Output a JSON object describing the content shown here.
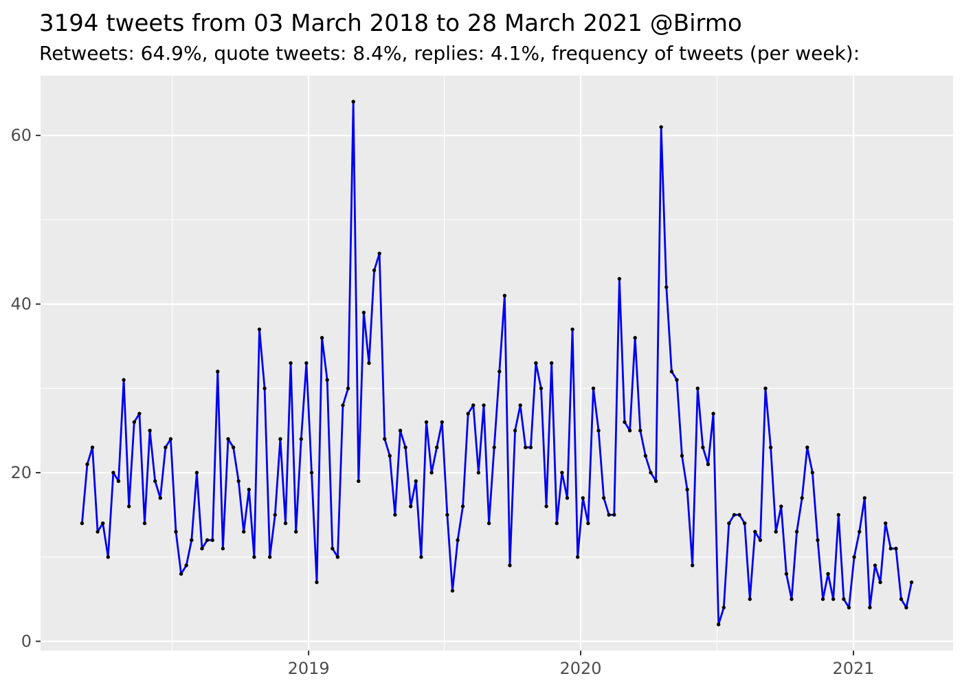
{
  "header": {
    "title": "3194 tweets from 03 March 2018 to 28 March 2021 @Birmo",
    "subtitle": "Retweets: 64.9%, quote tweets: 8.4%, replies: 4.1%, frequency of tweets (per week):"
  },
  "chart_data": {
    "type": "line",
    "title": "3194 tweets from 03 March 2018 to 28 March 2021 @Birmo",
    "subtitle": "Retweets: 64.9%, quote tweets: 8.4%, replies: 4.1%, frequency of tweets (per week):",
    "xlabel": "",
    "ylabel": "",
    "legend": "none",
    "grid": "major+minor",
    "x_start_date": "2018-03-03",
    "x_step_days": 7,
    "x_tick_dates": [
      "2019-01-01",
      "2020-01-01",
      "2021-01-01"
    ],
    "x_tick_labels": [
      "2019",
      "2020",
      "2021"
    ],
    "x_minor_dates": [
      "2018-07-02",
      "2019-07-02",
      "2020-07-02"
    ],
    "y_ticks": [
      0,
      20,
      40,
      60
    ],
    "y_tick_labels": [
      "0",
      "20",
      "40",
      "60"
    ],
    "y_minor_ticks": [
      10,
      30,
      50
    ],
    "ylim_data": [
      2,
      64
    ],
    "expansion": 0.05,
    "panel_bg": "#EBEBEB",
    "grid_color": "#FFFFFF",
    "line_color": "#0000EE",
    "point_color": "#000000",
    "axis_text_color": "#4D4D4D",
    "tick_mark_color": "#333333",
    "values": [
      14,
      21,
      23,
      13,
      14,
      10,
      20,
      19,
      31,
      16,
      26,
      27,
      14,
      25,
      19,
      17,
      23,
      24,
      13,
      8,
      9,
      12,
      20,
      11,
      12,
      12,
      32,
      11,
      24,
      23,
      19,
      13,
      18,
      10,
      37,
      30,
      10,
      15,
      24,
      14,
      33,
      13,
      24,
      33,
      20,
      7,
      36,
      31,
      11,
      10,
      28,
      30,
      64,
      19,
      39,
      33,
      44,
      46,
      24,
      22,
      15,
      25,
      23,
      16,
      19,
      10,
      26,
      20,
      23,
      26,
      15,
      6,
      12,
      16,
      27,
      28,
      20,
      28,
      14,
      23,
      32,
      41,
      9,
      25,
      28,
      23,
      23,
      33,
      30,
      16,
      33,
      14,
      20,
      17,
      37,
      10,
      17,
      14,
      30,
      25,
      17,
      15,
      15,
      43,
      26,
      25,
      36,
      25,
      22,
      20,
      19,
      61,
      42,
      32,
      31,
      22,
      18,
      9,
      30,
      23,
      21,
      27,
      2,
      4,
      14,
      15,
      15,
      14,
      5,
      13,
      12,
      30,
      23,
      13,
      16,
      8,
      5,
      13,
      17,
      23,
      20,
      12,
      5,
      8,
      5,
      15,
      5,
      4,
      10,
      13,
      17,
      4,
      9,
      7,
      14,
      11,
      11,
      5,
      4,
      7
    ]
  }
}
